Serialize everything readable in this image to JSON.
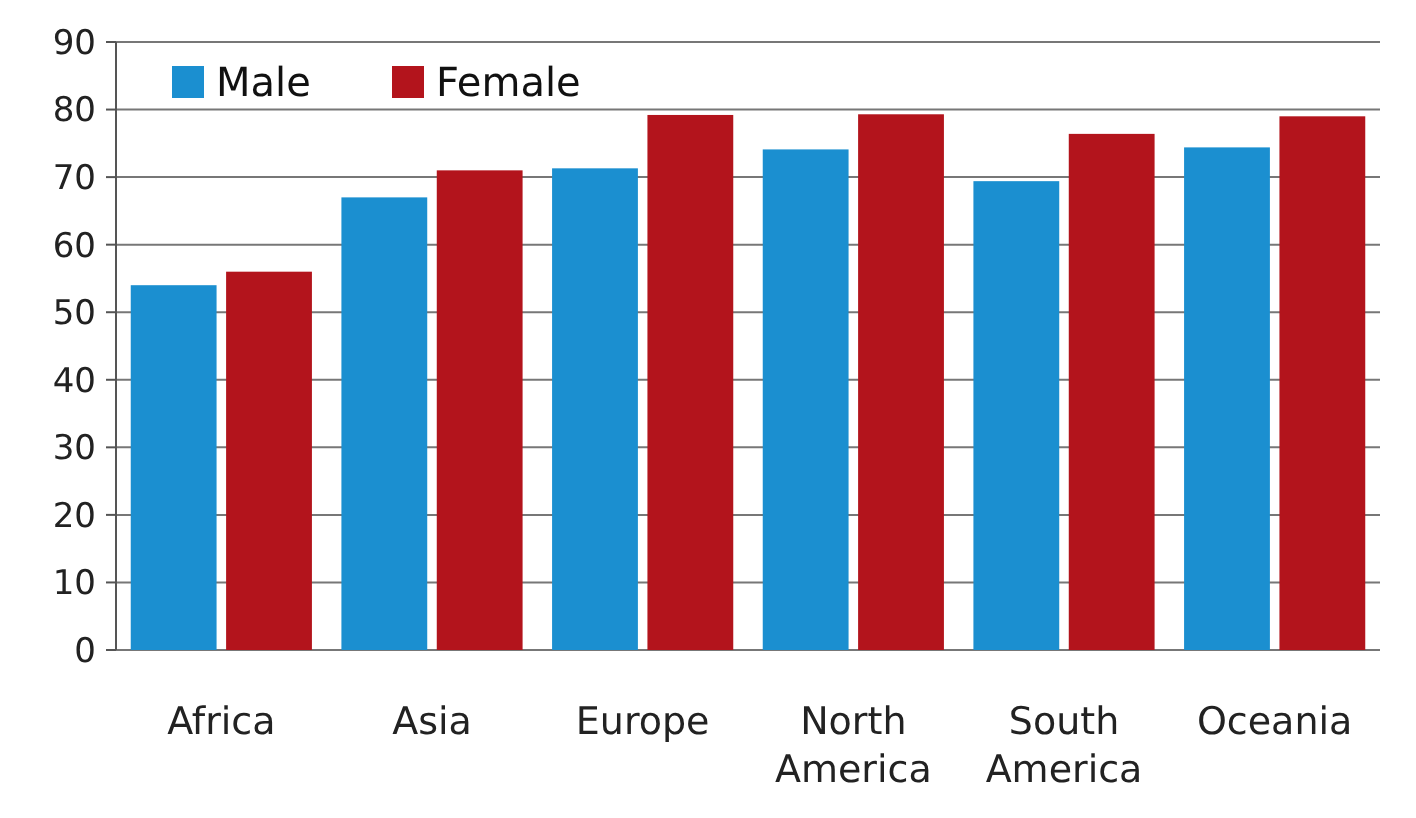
{
  "chart_data": {
    "type": "bar",
    "categories": [
      "Africa",
      "Asia",
      "Europe",
      "North\nAmerica",
      "South\nAmerica",
      "Oceania"
    ],
    "series": [
      {
        "name": "Male",
        "color": "#1b8fd0",
        "values": [
          54,
          67,
          71.3,
          74.1,
          69.4,
          74.4
        ]
      },
      {
        "name": "Female",
        "color": "#b3141c",
        "values": [
          56,
          71,
          79.2,
          79.3,
          76.4,
          79
        ]
      }
    ],
    "ylim": [
      0,
      90
    ],
    "yticks": [
      0,
      10,
      20,
      30,
      40,
      50,
      60,
      70,
      80,
      90
    ],
    "grid": "y",
    "legend": "top left"
  }
}
